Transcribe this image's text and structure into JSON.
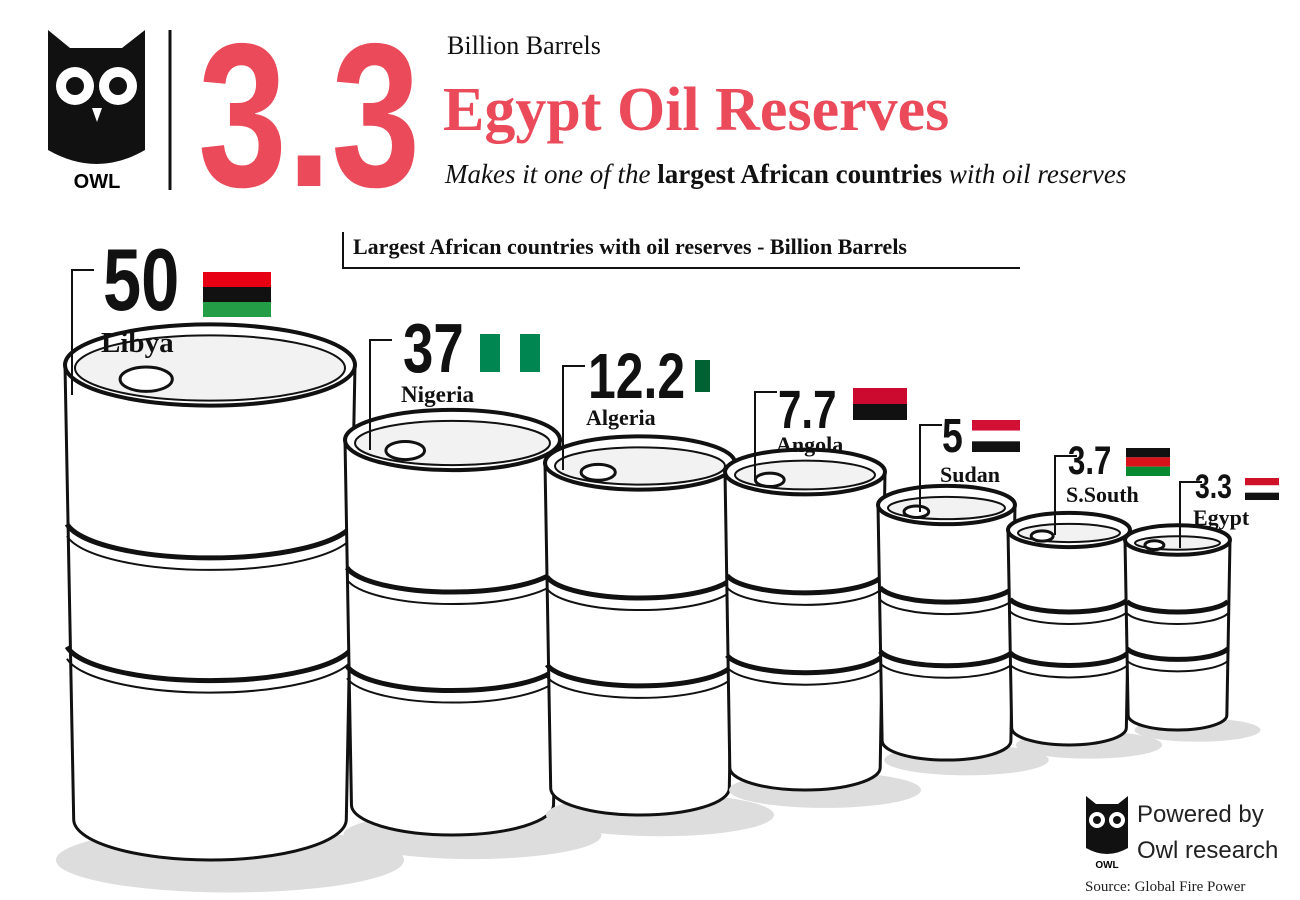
{
  "chart_data": {
    "type": "barrels",
    "logo": "OWL",
    "headline_value": 3.3,
    "headline_unit": "Billion Barrels",
    "title": "Egypt Oil Reserves",
    "subtitle": [
      "Makes it one of the",
      "largest African countries",
      "with oil reserves"
    ],
    "chart_title": "Largest African countries with oil reserves - Billion Barrels",
    "categories": [
      "Libya",
      "Nigeria",
      "Algeria",
      "Angola",
      "Sudan",
      "S.South",
      "Egypt"
    ],
    "values": [
      50,
      37,
      12.2,
      7.7,
      5,
      3.7,
      3.3
    ],
    "value_color": "#111111",
    "footer": {
      "logo": "OWL",
      "line1": "Powered by",
      "line2": "Owl research",
      "source": "Source: Global Fire Power"
    }
  }
}
